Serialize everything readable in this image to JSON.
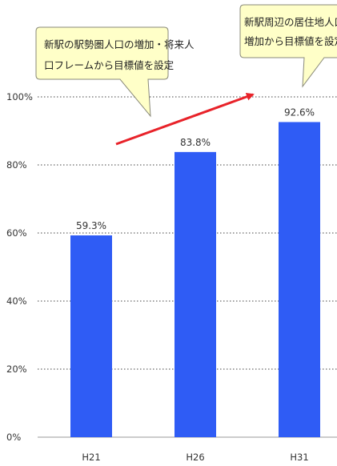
{
  "chart_data": {
    "type": "bar",
    "categories": [
      "H21",
      "H26",
      "H31"
    ],
    "values": [
      59.3,
      83.8,
      92.6
    ],
    "data_labels": [
      "59.3%",
      "83.8%",
      "92.6%"
    ],
    "ylim": [
      0,
      100
    ],
    "y_ticks": [
      0,
      20,
      40,
      60,
      80,
      100
    ],
    "y_tick_labels": [
      "0%",
      "20%",
      "40%",
      "60%",
      "80%",
      "100%"
    ],
    "grid": "dotted horizontal",
    "bar_color": "#2f5cf5",
    "title": "",
    "xlabel": "",
    "ylabel": ""
  },
  "annotations": {
    "callout_left": {
      "lines": [
        "新駅の駅勢圏人口の増加・将来人",
        "口フレームから目標値を設定"
      ],
      "fill": "#ffffc8"
    },
    "callout_right": {
      "lines": [
        "新駅周辺の居住地人口の",
        "増加から目標値を設定"
      ],
      "fill": "#ffffc8"
    },
    "arrow_color": "#e8232a"
  }
}
